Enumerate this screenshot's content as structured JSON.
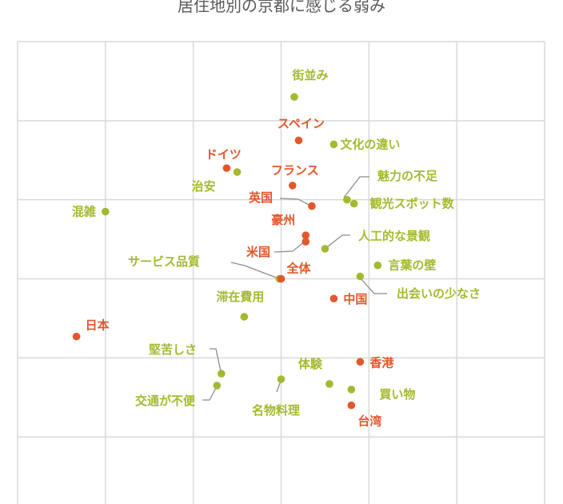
{
  "chart_data": {
    "type": "scatter",
    "title": "居住地別の京都に感じる弱み",
    "xlabel": "",
    "ylabel": "",
    "xlim": [
      -3,
      3
    ],
    "ylim": [
      -3,
      3
    ],
    "grid": true,
    "colors": {
      "items": "#a5b92e",
      "regions": "#e2572b",
      "grid": "#d9d9d9",
      "leader": "#8c8c8c"
    },
    "series": [
      {
        "kind": "items",
        "points": [
          {
            "label": "街並み",
            "x": 0.15,
            "y": 2.3
          },
          {
            "label": "文化の違い",
            "x": 0.6,
            "y": 1.7
          },
          {
            "label": "魅力の不足",
            "x": 0.75,
            "y": 1.0
          },
          {
            "label": "観光スポット数",
            "x": 0.83,
            "y": 0.95
          },
          {
            "label": "混雑",
            "x": -2.0,
            "y": 0.85
          },
          {
            "label": "治安",
            "x": -0.5,
            "y": 1.35
          },
          {
            "label": "人工的な景観",
            "x": 0.5,
            "y": 0.38
          },
          {
            "label": "言葉の壁",
            "x": 1.1,
            "y": 0.17
          },
          {
            "label": "サービス品質",
            "x": -0.02,
            "y": 0.0
          },
          {
            "label": "出会いの少なさ",
            "x": 0.9,
            "y": 0.03
          },
          {
            "label": "滞在費用",
            "x": -0.42,
            "y": -0.48
          },
          {
            "label": "堅苦しさ",
            "x": -0.68,
            "y": -1.2
          },
          {
            "label": "交通が不便",
            "x": -0.73,
            "y": -1.35
          },
          {
            "label": "体験",
            "x": 0.55,
            "y": -1.33
          },
          {
            "label": "名物料理",
            "x": 0.0,
            "y": -1.27
          },
          {
            "label": "買い物",
            "x": 0.8,
            "y": -1.4
          }
        ]
      },
      {
        "kind": "regions",
        "points": [
          {
            "label": "スペイン",
            "x": 0.2,
            "y": 1.75
          },
          {
            "label": "ドイツ",
            "x": -0.62,
            "y": 1.4
          },
          {
            "label": "フランス",
            "x": 0.13,
            "y": 1.18
          },
          {
            "label": "英国",
            "x": 0.35,
            "y": 0.92
          },
          {
            "label": "豪州",
            "x": 0.28,
            "y": 0.55
          },
          {
            "label": "米国",
            "x": 0.28,
            "y": 0.47
          },
          {
            "label": "全体",
            "x": 0.0,
            "y": 0.0
          },
          {
            "label": "中国",
            "x": 0.6,
            "y": -0.25
          },
          {
            "label": "日本",
            "x": -2.33,
            "y": -0.73
          },
          {
            "label": "香港",
            "x": 0.9,
            "y": -1.05
          },
          {
            "label": "台湾",
            "x": 0.8,
            "y": -1.6
          }
        ]
      }
    ]
  }
}
